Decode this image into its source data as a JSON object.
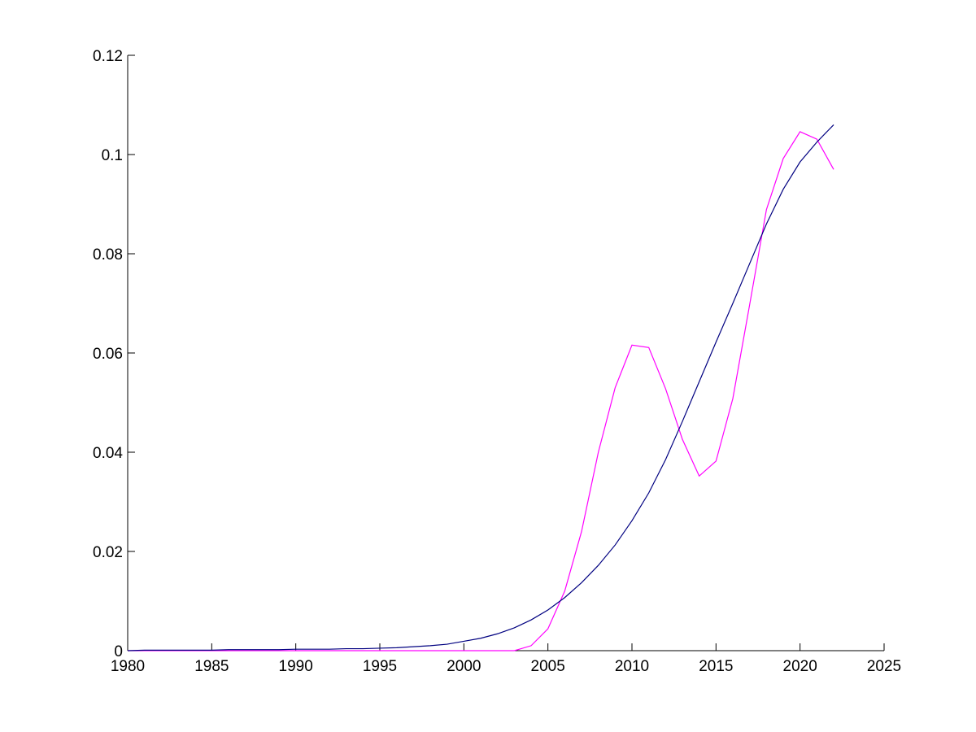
{
  "chart_data": {
    "type": "line",
    "x": [
      1980,
      1981,
      1982,
      1983,
      1984,
      1985,
      1986,
      1987,
      1988,
      1989,
      1990,
      1991,
      1992,
      1993,
      1994,
      1995,
      1996,
      1997,
      1998,
      1999,
      2000,
      2001,
      2002,
      2003,
      2004,
      2005,
      2006,
      2007,
      2008,
      2009,
      2010,
      2011,
      2012,
      2013,
      2014,
      2015,
      2016,
      2017,
      2018,
      2019,
      2020,
      2021,
      2022
    ],
    "series": [
      {
        "color": "#ff00ff",
        "values": [
          0,
          0,
          0,
          0,
          0,
          0,
          0,
          0,
          0,
          0,
          0,
          0,
          0,
          0,
          0,
          0,
          0,
          0,
          0,
          0,
          0,
          0,
          0,
          0,
          0.001,
          0.0044,
          0.012,
          0.024,
          0.04,
          0.053,
          0.0616,
          0.0611,
          0.0528,
          0.0426,
          0.0352,
          0.0382,
          0.0508,
          0.0697,
          0.0889,
          0.0992,
          0.1046,
          0.1031,
          0.097
        ]
      },
      {
        "color": "#000080",
        "values": [
          0,
          0.0001,
          0.0001,
          0.0001,
          0.0001,
          0.0001,
          0.0002,
          0.0002,
          0.0002,
          0.0002,
          0.0003,
          0.0003,
          0.0003,
          0.0004,
          0.0004,
          0.0005,
          0.0006,
          0.0008,
          0.001,
          0.0013,
          0.0019,
          0.0025,
          0.0034,
          0.0046,
          0.0062,
          0.0082,
          0.0107,
          0.0137,
          0.0172,
          0.0213,
          0.0262,
          0.0318,
          0.0385,
          0.0462,
          0.0542,
          0.0622,
          0.07,
          0.078,
          0.086,
          0.093,
          0.0985,
          0.1025,
          0.106
        ]
      }
    ],
    "xlim": [
      1980,
      2025
    ],
    "xticks": [
      1980,
      1985,
      1990,
      1995,
      2000,
      2005,
      2010,
      2015,
      2020,
      2025
    ],
    "ylim": [
      0,
      0.12
    ],
    "yticks": [
      0,
      0.02,
      0.04,
      0.06,
      0.08,
      0.1,
      0.12
    ]
  }
}
